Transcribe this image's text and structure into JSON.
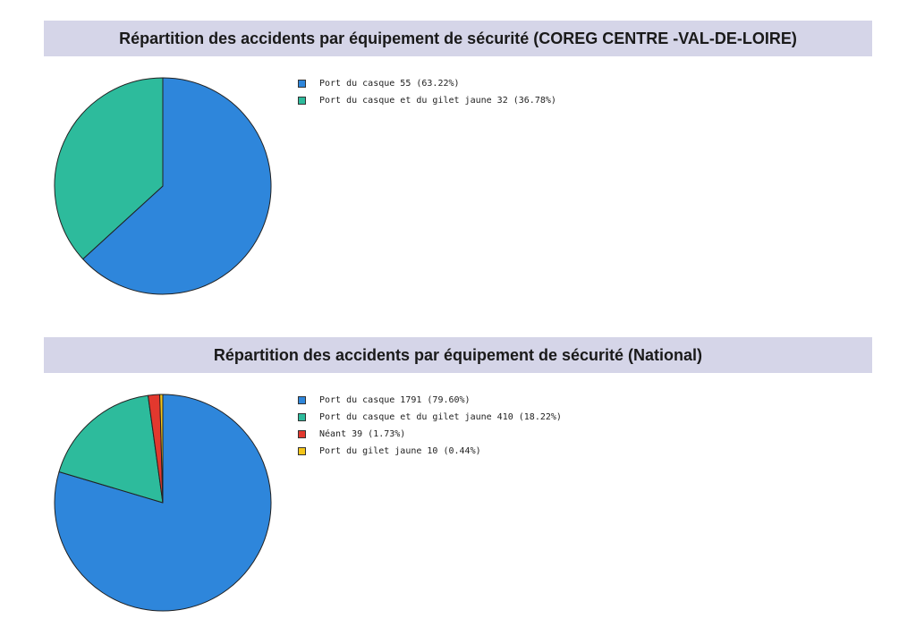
{
  "chart_data": [
    {
      "type": "pie",
      "title": "Répartition des accidents par équipement de sécurité (COREG CENTRE -VAL-DE-LOIRE)",
      "legend_position": "right",
      "slices": [
        {
          "label": "Port du casque 55 (63.22%)",
          "value": 55,
          "color": "#2e86db"
        },
        {
          "label": "Port du casque et du gilet jaune 32 (36.78%)",
          "value": 32,
          "color": "#2dbb9c"
        }
      ]
    },
    {
      "type": "pie",
      "title": "Répartition des accidents par équipement de sécurité (National)",
      "legend_position": "right",
      "slices": [
        {
          "label": "Port du casque 1791 (79.60%)",
          "value": 1791,
          "color": "#2e86db"
        },
        {
          "label": "Port du casque et du gilet jaune 410 (18.22%)",
          "value": 410,
          "color": "#2dbb9c"
        },
        {
          "label": "Néant 39 (1.73%)",
          "value": 39,
          "color": "#e2382e"
        },
        {
          "label": "Port du gilet jaune 10 (0.44%)",
          "value": 10,
          "color": "#f4c51a"
        }
      ]
    }
  ]
}
